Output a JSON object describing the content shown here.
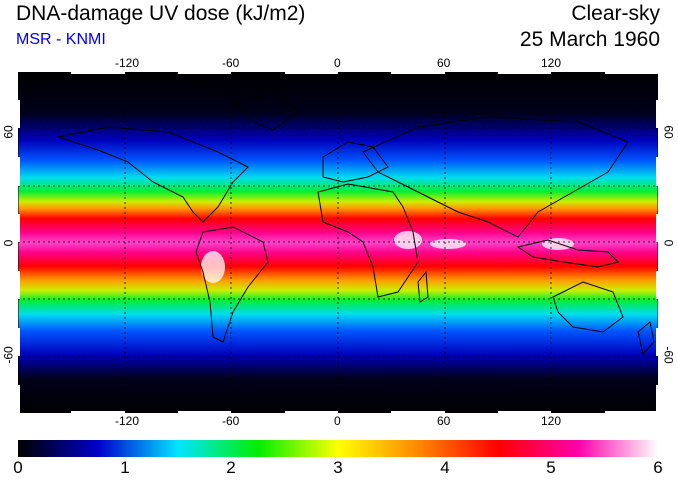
{
  "header": {
    "title": "DNA-damage UV dose (kJ/m2)",
    "source": "MSR - KNMI",
    "condition": "Clear-sky",
    "date": "25 March 1960"
  },
  "colors": {
    "source_text": "#0000ee",
    "scale": [
      "#000000",
      "#0000cc",
      "#00e5ff",
      "#00ee00",
      "#ffff00",
      "#ff8800",
      "#ff0000",
      "#ff00aa",
      "#ffffff"
    ]
  },
  "map": {
    "longitude_ticks": [
      "-120",
      "-60",
      "0",
      "60",
      "120"
    ],
    "latitude_ticks_left": [
      "60",
      "0",
      "-60"
    ],
    "latitude_ticks_right": [
      "60",
      "0",
      "-60"
    ],
    "longitude_range": [
      -180,
      180
    ],
    "latitude_range": [
      -90,
      90
    ]
  },
  "colorbar": {
    "labels": [
      "0",
      "1",
      "2",
      "3",
      "4",
      "5",
      "6"
    ],
    "min": 0,
    "max": 6
  }
}
